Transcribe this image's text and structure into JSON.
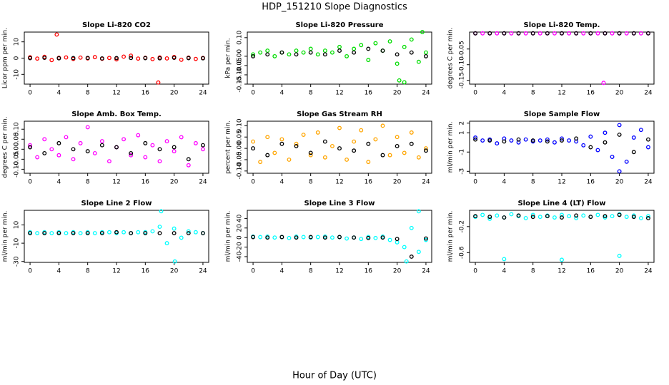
{
  "title": "HDP_151210  Slope Diagnostics",
  "xlabel": "Hour of Day (UTC)",
  "chart_data": [
    {
      "type": "scatter",
      "title": "Slope Li-820 CO2",
      "ylabel": "Licor ppm per min.",
      "xlim": [
        -0.8,
        24.8
      ],
      "xticks": [
        0,
        4,
        8,
        12,
        16,
        20,
        24
      ],
      "ylim": [
        -16,
        16
      ],
      "yticks": [
        -10,
        0,
        10
      ],
      "series": [
        {
          "color": "#ff0000",
          "x": [
            0,
            1,
            2,
            3,
            4,
            5,
            6,
            7,
            8,
            9,
            10,
            11,
            12,
            13,
            14,
            15,
            16,
            17,
            18,
            19,
            20,
            21,
            22,
            23,
            24,
            3.7,
            17.8
          ],
          "values": [
            0.5,
            -0.3,
            0.8,
            -1.2,
            0.2,
            0.4,
            -0.5,
            0.3,
            -0.2,
            0.6,
            -0.4,
            0.1,
            -0.8,
            0.9,
            1.5,
            -0.3,
            0.2,
            -0.6,
            0.4,
            -0.2,
            0.7,
            -1.0,
            0.3,
            -0.5,
            0.1,
            14.5,
            -15
          ]
        },
        {
          "color": "#000000",
          "x": [
            0,
            2,
            4,
            6,
            8,
            10,
            12,
            14,
            16,
            18,
            20,
            22,
            24
          ],
          "values": [
            0,
            0.2,
            -0.1,
            0,
            0.1,
            -0.2,
            0,
            0.1,
            0,
            -0.1,
            0.2,
            0,
            -0.1
          ]
        }
      ]
    },
    {
      "type": "scatter",
      "title": "Slope Li-820 Pressure",
      "ylabel": "kPa per min.",
      "xlim": [
        -0.8,
        24.8
      ],
      "xticks": [
        0,
        4,
        8,
        12,
        16,
        20,
        24
      ],
      "ylim": [
        -0.15,
        0.13
      ],
      "yticks": [
        -0.15,
        {
          "value": -0.1,
          "label": "-0.10"
        },
        -0.05,
        {
          "value": 0,
          "label": "0.00"
        },
        {
          "value": 0.1,
          "label": "0.10"
        }
      ],
      "series": [
        {
          "color": "#00dd00",
          "x": [
            0,
            1,
            2,
            3,
            4,
            5,
            6,
            7,
            8,
            9,
            10,
            11,
            12,
            13,
            14,
            15,
            16,
            17,
            18,
            19,
            20,
            21,
            22,
            23,
            24,
            20.3,
            21,
            23.5
          ],
          "values": [
            0.01,
            0.02,
            0.03,
            0,
            0.02,
            0.01,
            0.03,
            0.02,
            0.04,
            0.01,
            0.03,
            0.02,
            0.05,
            0,
            0.04,
            0.06,
            -0.02,
            0.07,
            0.03,
            0.08,
            -0.04,
            0.05,
            0.09,
            -0.03,
            0.02,
            -0.13,
            -0.14,
            0.13
          ]
        },
        {
          "color": "#000000",
          "x": [
            0,
            2,
            4,
            6,
            8,
            10,
            12,
            14,
            16,
            18,
            20,
            22,
            24
          ],
          "values": [
            0,
            0.01,
            0.02,
            0.01,
            0.02,
            0.01,
            0.03,
            0.02,
            0.04,
            0.03,
            0.01,
            0.02,
            0
          ]
        }
      ]
    },
    {
      "type": "scatter",
      "title": "Slope Li-820 Temp.",
      "ylabel": "degrees C per min.",
      "xlim": [
        -0.8,
        24.8
      ],
      "xticks": [
        0,
        4,
        8,
        12,
        16,
        20,
        24
      ],
      "ylim": [
        -0.162,
        0.004
      ],
      "yticks": [
        -0.15,
        {
          "value": -0.1,
          "label": "-0.10"
        },
        -0.05
      ],
      "series": [
        {
          "color": "#ff00ff",
          "x": [
            0,
            1,
            2,
            3,
            4,
            5,
            6,
            7,
            8,
            9,
            10,
            11,
            12,
            13,
            14,
            15,
            16,
            17,
            18,
            19,
            20,
            21,
            22,
            23,
            24,
            17.8
          ],
          "values": [
            0,
            0,
            0,
            0,
            0,
            0,
            0,
            0,
            0,
            0,
            0,
            0,
            0,
            0,
            0,
            0,
            0,
            0,
            0,
            0,
            0,
            0,
            0,
            0,
            0,
            -0.158
          ]
        },
        {
          "color": "#000000",
          "x": [
            0,
            2,
            4,
            6,
            8,
            10,
            12,
            14,
            16,
            18,
            20,
            22,
            24
          ],
          "values": [
            0,
            0,
            0,
            0,
            0,
            0,
            0,
            0,
            0,
            0,
            0,
            0,
            0
          ]
        }
      ]
    },
    {
      "type": "scatter",
      "title": "Slope Amb. Box Temp.",
      "ylabel": "degrees C per min.",
      "xlim": [
        -0.8,
        24.8
      ],
      "xticks": [
        0,
        4,
        8,
        12,
        16,
        20,
        24
      ],
      "ylim": [
        -0.12,
        0.14
      ],
      "yticks": [
        {
          "value": -0.1,
          "label": "-0.10"
        },
        -0.05,
        {
          "value": 0,
          "label": "0.00"
        },
        0.05,
        {
          "value": 0.1,
          "label": "0.10"
        }
      ],
      "series": [
        {
          "color": "#ff00ff",
          "x": [
            0,
            1,
            2,
            3,
            4,
            5,
            6,
            7,
            8,
            9,
            10,
            11,
            12,
            13,
            14,
            15,
            16,
            17,
            18,
            19,
            20,
            21,
            22,
            23,
            24
          ],
          "values": [
            0.02,
            -0.04,
            0.05,
            0,
            -0.03,
            0.06,
            -0.05,
            0.03,
            0.11,
            -0.02,
            0.04,
            -0.06,
            0.01,
            0.05,
            -0.03,
            0.07,
            -0.04,
            0.02,
            -0.06,
            0.04,
            -0.01,
            0.06,
            -0.08,
            0.03,
            0
          ]
        },
        {
          "color": "#000000",
          "x": [
            0,
            2,
            4,
            6,
            8,
            10,
            12,
            14,
            16,
            18,
            20,
            22,
            24
          ],
          "values": [
            0.01,
            -0.02,
            0.03,
            0,
            -0.01,
            0.02,
            0.01,
            -0.02,
            0.03,
            0,
            0.01,
            -0.05,
            0.02
          ]
        }
      ]
    },
    {
      "type": "scatter",
      "title": "Slope Gas Stream RH",
      "ylabel": "percent per min.",
      "xlim": [
        -0.8,
        24.8
      ],
      "xticks": [
        0,
        4,
        8,
        12,
        16,
        20,
        24
      ],
      "ylim": [
        -0.11,
        0.12
      ],
      "yticks": [
        {
          "value": -0.1,
          "label": "-0.10"
        },
        -0.05,
        {
          "value": 0,
          "label": "0.00"
        },
        0.05,
        {
          "value": 0.1,
          "label": "0.10"
        }
      ],
      "series": [
        {
          "color": "#ffa500",
          "x": [
            0,
            1,
            2,
            3,
            4,
            5,
            6,
            7,
            8,
            9,
            10,
            11,
            12,
            13,
            14,
            15,
            16,
            17,
            18,
            19,
            20,
            21,
            22,
            23,
            24
          ],
          "values": [
            0.03,
            -0.06,
            0.05,
            -0.02,
            0.04,
            -0.05,
            0.02,
            0.06,
            -0.03,
            0.07,
            -0.04,
            0.01,
            0.09,
            -0.05,
            0.03,
            0.08,
            -0.06,
            0.04,
            0.1,
            -0.03,
            0.05,
            -0.02,
            0.07,
            -0.04,
            0
          ]
        },
        {
          "color": "#000000",
          "x": [
            0,
            2,
            4,
            6,
            8,
            10,
            12,
            14,
            16,
            18,
            20,
            22,
            24
          ],
          "values": [
            0,
            -0.03,
            0.02,
            0.01,
            -0.02,
            0.03,
            0,
            -0.01,
            0.02,
            -0.03,
            0.01,
            0.02,
            -0.01
          ]
        }
      ]
    },
    {
      "type": "scatter",
      "title": "Slope Sample Flow",
      "ylabel": "ml/min per min.",
      "xlim": [
        -0.8,
        24.8
      ],
      "xticks": [
        0,
        4,
        8,
        12,
        16,
        20,
        24
      ],
      "ylim": [
        -3.2,
        2.2
      ],
      "yticks": [
        -3,
        -1,
        1,
        2
      ],
      "series": [
        {
          "color": "#0000ff",
          "x": [
            0,
            1,
            2,
            3,
            4,
            5,
            6,
            7,
            8,
            9,
            10,
            11,
            12,
            13,
            14,
            15,
            16,
            17,
            18,
            19,
            20,
            21,
            22,
            23,
            24,
            20
          ],
          "values": [
            0.5,
            0.2,
            0.3,
            -0.1,
            0.4,
            0.2,
            0,
            0.3,
            0.1,
            0.2,
            0.3,
            0,
            0.4,
            0.2,
            0.1,
            -0.3,
            0.6,
            -0.8,
            1,
            -1.5,
            1.8,
            -2,
            0.5,
            1.3,
            -0.5,
            -3
          ]
        },
        {
          "color": "#000000",
          "x": [
            0,
            2,
            4,
            6,
            8,
            10,
            12,
            14,
            16,
            18,
            20,
            22,
            24
          ],
          "values": [
            0.3,
            0.2,
            0.1,
            0.3,
            0.2,
            0.1,
            0.2,
            0.4,
            -0.5,
            0,
            0.8,
            -1,
            0.3
          ]
        }
      ]
    },
    {
      "type": "scatter",
      "title": "Slope Line 2 Flow",
      "ylabel": "ml/min per min.",
      "xlim": [
        -0.8,
        24.8
      ],
      "xticks": [
        0,
        4,
        8,
        12,
        16,
        20,
        24
      ],
      "ylim": [
        -31,
        26
      ],
      "yticks": [
        -30,
        -10,
        10
      ],
      "series": [
        {
          "color": "#00ffff",
          "x": [
            0,
            1,
            2,
            3,
            4,
            5,
            6,
            7,
            8,
            9,
            10,
            11,
            12,
            13,
            14,
            15,
            16,
            17,
            18,
            19,
            20,
            21,
            22,
            23,
            24,
            18.2,
            20.1
          ],
          "values": [
            2,
            1,
            2,
            1,
            2,
            1,
            2,
            1,
            2,
            1,
            2,
            2,
            1,
            2,
            1,
            2,
            2,
            3,
            8,
            -10,
            6,
            -4,
            3,
            2,
            1,
            25,
            -30
          ]
        },
        {
          "color": "#000000",
          "x": [
            0,
            2,
            4,
            6,
            8,
            10,
            12,
            14,
            16,
            18,
            20,
            22,
            24
          ],
          "values": [
            1,
            1,
            1,
            1,
            1,
            1,
            2,
            1,
            1,
            1,
            1,
            1,
            1
          ]
        }
      ]
    },
    {
      "type": "scatter",
      "title": "Slope Line 3 Flow",
      "ylabel": "ml/min per min.",
      "xlim": [
        -0.8,
        24.8
      ],
      "xticks": [
        0,
        4,
        8,
        12,
        16,
        20,
        24
      ],
      "ylim": [
        -52,
        57
      ],
      "yticks": [
        -40,
        -20,
        0,
        20,
        40
      ],
      "series": [
        {
          "color": "#00ffff",
          "x": [
            0,
            1,
            2,
            3,
            4,
            5,
            6,
            7,
            8,
            9,
            10,
            11,
            12,
            13,
            14,
            15,
            16,
            17,
            18,
            19,
            20,
            21,
            22,
            23,
            24,
            23,
            21.3
          ],
          "values": [
            2,
            1,
            2,
            0,
            1,
            -1,
            2,
            1,
            0,
            1,
            2,
            0,
            1,
            -2,
            0,
            -3,
            1,
            -1,
            2,
            -5,
            -10,
            -20,
            20,
            -30,
            -5,
            55,
            -50
          ]
        },
        {
          "color": "#000000",
          "x": [
            0,
            2,
            4,
            6,
            8,
            10,
            12,
            14,
            16,
            18,
            20,
            22,
            24
          ],
          "values": [
            1,
            0,
            1,
            0,
            1,
            0,
            1,
            0,
            -1,
            0,
            -3,
            -40,
            -2
          ]
        }
      ]
    },
    {
      "type": "scatter",
      "title": "Slope Line 4 (LT) Flow",
      "ylabel": "ml/min per min.",
      "xlim": [
        -0.8,
        24.8
      ],
      "xticks": [
        0,
        4,
        8,
        12,
        16,
        20,
        24
      ],
      "ylim": [
        -0.75,
        0.05
      ],
      "yticks": [
        -0.6,
        -0.2
      ],
      "series": [
        {
          "color": "#00ffff",
          "x": [
            0,
            1,
            2,
            3,
            4,
            5,
            6,
            7,
            8,
            9,
            10,
            11,
            12,
            13,
            14,
            15,
            16,
            17,
            18,
            19,
            20,
            21,
            22,
            23,
            24,
            4,
            12,
            20
          ],
          "values": [
            -0.05,
            -0.02,
            -0.08,
            -0.03,
            -0.06,
            -0.01,
            -0.04,
            -0.07,
            -0.02,
            -0.05,
            -0.03,
            -0.06,
            -0.02,
            -0.04,
            -0.07,
            -0.03,
            -0.05,
            -0.02,
            -0.06,
            -0.04,
            -0.01,
            -0.05,
            -0.03,
            -0.07,
            -0.04,
            -0.7,
            -0.71,
            -0.65
          ]
        },
        {
          "color": "#000000",
          "x": [
            0,
            2,
            4,
            6,
            8,
            10,
            12,
            14,
            16,
            18,
            20,
            22,
            24
          ],
          "values": [
            -0.04,
            -0.05,
            -0.06,
            -0.03,
            -0.05,
            -0.04,
            -0.06,
            -0.03,
            -0.05,
            -0.04,
            -0.02,
            -0.05,
            -0.07
          ]
        }
      ]
    }
  ]
}
